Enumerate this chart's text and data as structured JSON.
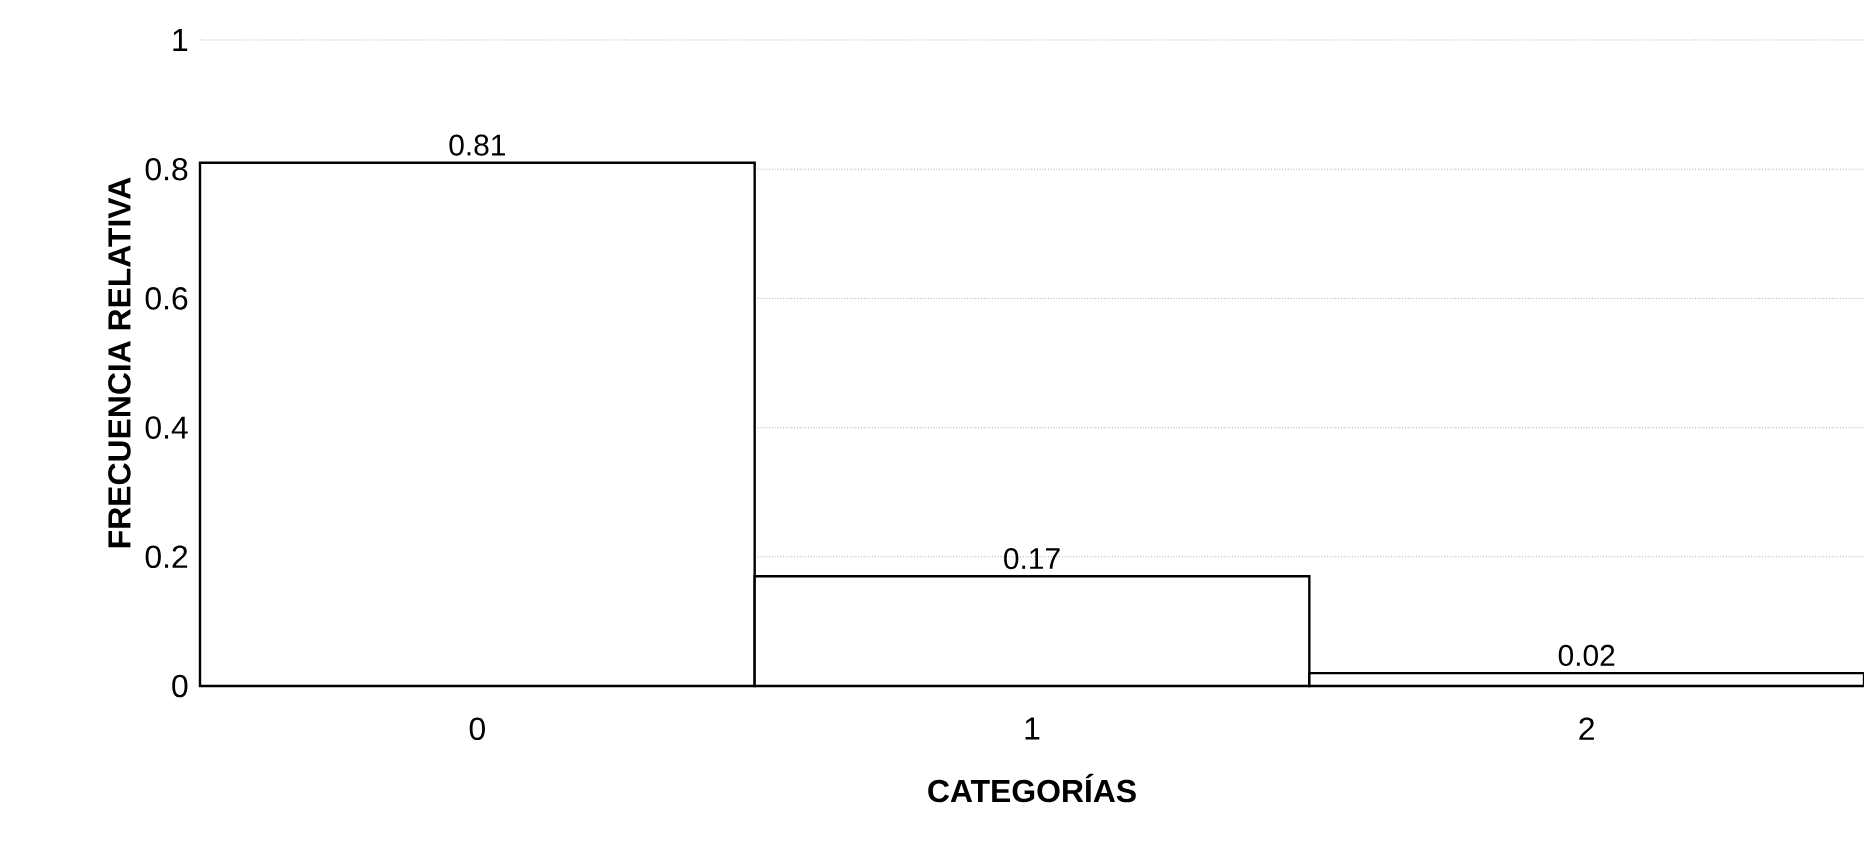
{
  "chart_data": {
    "type": "bar",
    "xlabel": "CATEGORÍAS",
    "ylabel": "FRECUENCIA RELATIVA",
    "categories": [
      "0",
      "1",
      "2"
    ],
    "values": [
      0.81,
      0.17,
      0.02
    ],
    "color": "#ffffff",
    "ylim": [
      0,
      1
    ],
    "yticks": [
      0,
      0.2,
      0.4,
      0.6,
      0.8,
      1
    ],
    "grid": "y",
    "data_labels": true
  }
}
